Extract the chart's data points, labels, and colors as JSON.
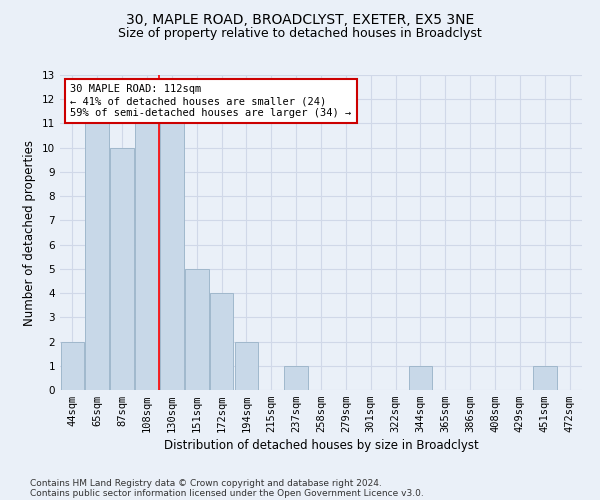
{
  "title1": "30, MAPLE ROAD, BROADCLYST, EXETER, EX5 3NE",
  "title2": "Size of property relative to detached houses in Broadclyst",
  "xlabel": "Distribution of detached houses by size in Broadclyst",
  "ylabel": "Number of detached properties",
  "footer1": "Contains HM Land Registry data © Crown copyright and database right 2024.",
  "footer2": "Contains public sector information licensed under the Open Government Licence v3.0.",
  "categories": [
    "44sqm",
    "65sqm",
    "87sqm",
    "108sqm",
    "130sqm",
    "151sqm",
    "172sqm",
    "194sqm",
    "215sqm",
    "237sqm",
    "258sqm",
    "279sqm",
    "301sqm",
    "322sqm",
    "344sqm",
    "365sqm",
    "386sqm",
    "408sqm",
    "429sqm",
    "451sqm",
    "472sqm"
  ],
  "values": [
    2,
    11,
    10,
    11,
    11,
    5,
    4,
    2,
    0,
    1,
    0,
    0,
    0,
    0,
    1,
    0,
    0,
    0,
    0,
    1,
    0
  ],
  "bar_color": "#c8d8e8",
  "bar_edge_color": "#a0b8cc",
  "red_line_x": 3.5,
  "annotation_text": "30 MAPLE ROAD: 112sqm\n← 41% of detached houses are smaller (24)\n59% of semi-detached houses are larger (34) →",
  "annotation_box_color": "#ffffff",
  "annotation_box_edge": "#cc0000",
  "annotation_fontsize": 7.5,
  "ylim": [
    0,
    13
  ],
  "yticks": [
    0,
    1,
    2,
    3,
    4,
    5,
    6,
    7,
    8,
    9,
    10,
    11,
    12,
    13
  ],
  "grid_color": "#d0d8e8",
  "bg_color": "#eaf0f8",
  "title1_fontsize": 10,
  "title2_fontsize": 9,
  "xlabel_fontsize": 8.5,
  "ylabel_fontsize": 8.5,
  "tick_fontsize": 7.5,
  "footer_fontsize": 6.5
}
